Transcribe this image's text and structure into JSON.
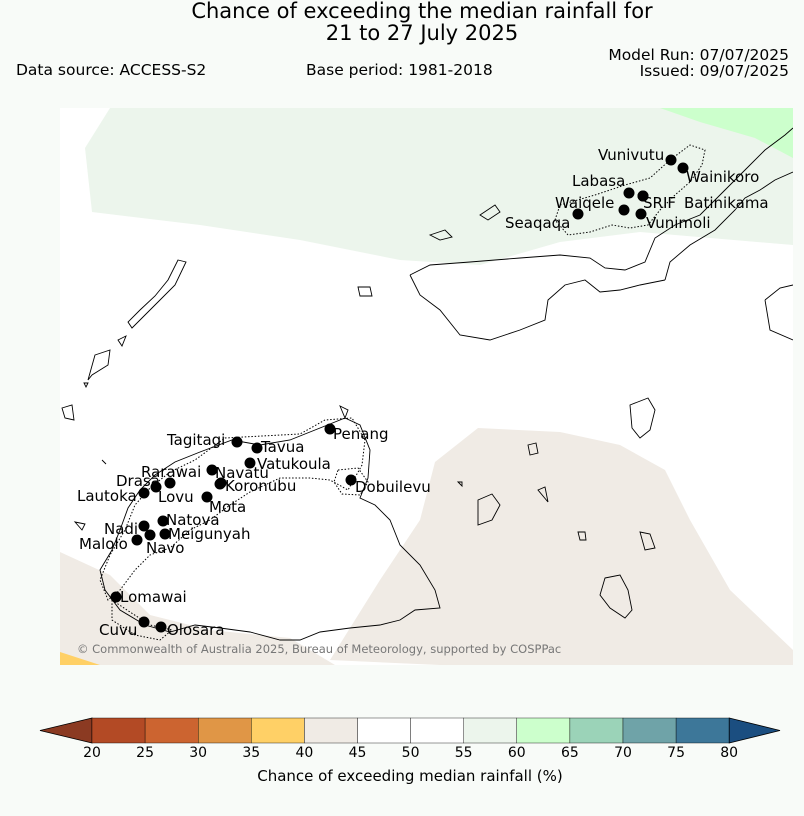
{
  "title": {
    "line1": "Chance of exceeding the median rainfall for",
    "line2": "21 to 27 July 2025"
  },
  "meta": {
    "data_source": "Data source: ACCESS-S2",
    "base_period": "Base period: 1981-2018",
    "model_run": "Model Run: 07/07/2025",
    "issued": "Issued: 09/07/2025"
  },
  "map": {
    "copyright": "© Commonwealth of Australia 2025, Bureau of Meteorology, supported by COSPPac",
    "towns": [
      "Vunivutu",
      "Wainikoro",
      "Labasa",
      "Waiqele",
      "SRIF",
      "Batinikama",
      "Seaqaqa",
      "Vunimoli",
      "Penang",
      "Tagitagi",
      "Tavua",
      "Vatukoula",
      "Rarawai",
      "Navatu",
      "Koronubu",
      "Dobuilevu",
      "Drasa",
      "Lautoka",
      "Lovu",
      "Mota",
      "Natova",
      "Nadi",
      "Meigunyah",
      "Malolo",
      "Navo",
      "Lomawai",
      "Cuvu",
      "Olosara"
    ]
  },
  "colorbar": {
    "label": "Chance of exceeding median rainfall (%)",
    "ticks": [
      "20",
      "25",
      "30",
      "35",
      "40",
      "45",
      "50",
      "55",
      "60",
      "65",
      "70",
      "75",
      "80"
    ],
    "colors": [
      "#8b3a22",
      "#b34a25",
      "#cc6430",
      "#e09646",
      "#ffd066",
      "#f0ebe5",
      "#ffffff",
      "#ffffff",
      "#ecf5ec",
      "#ccffcc",
      "#9bd3b8",
      "#6fa3a8",
      "#3d7799",
      "#1b4e80"
    ]
  }
}
